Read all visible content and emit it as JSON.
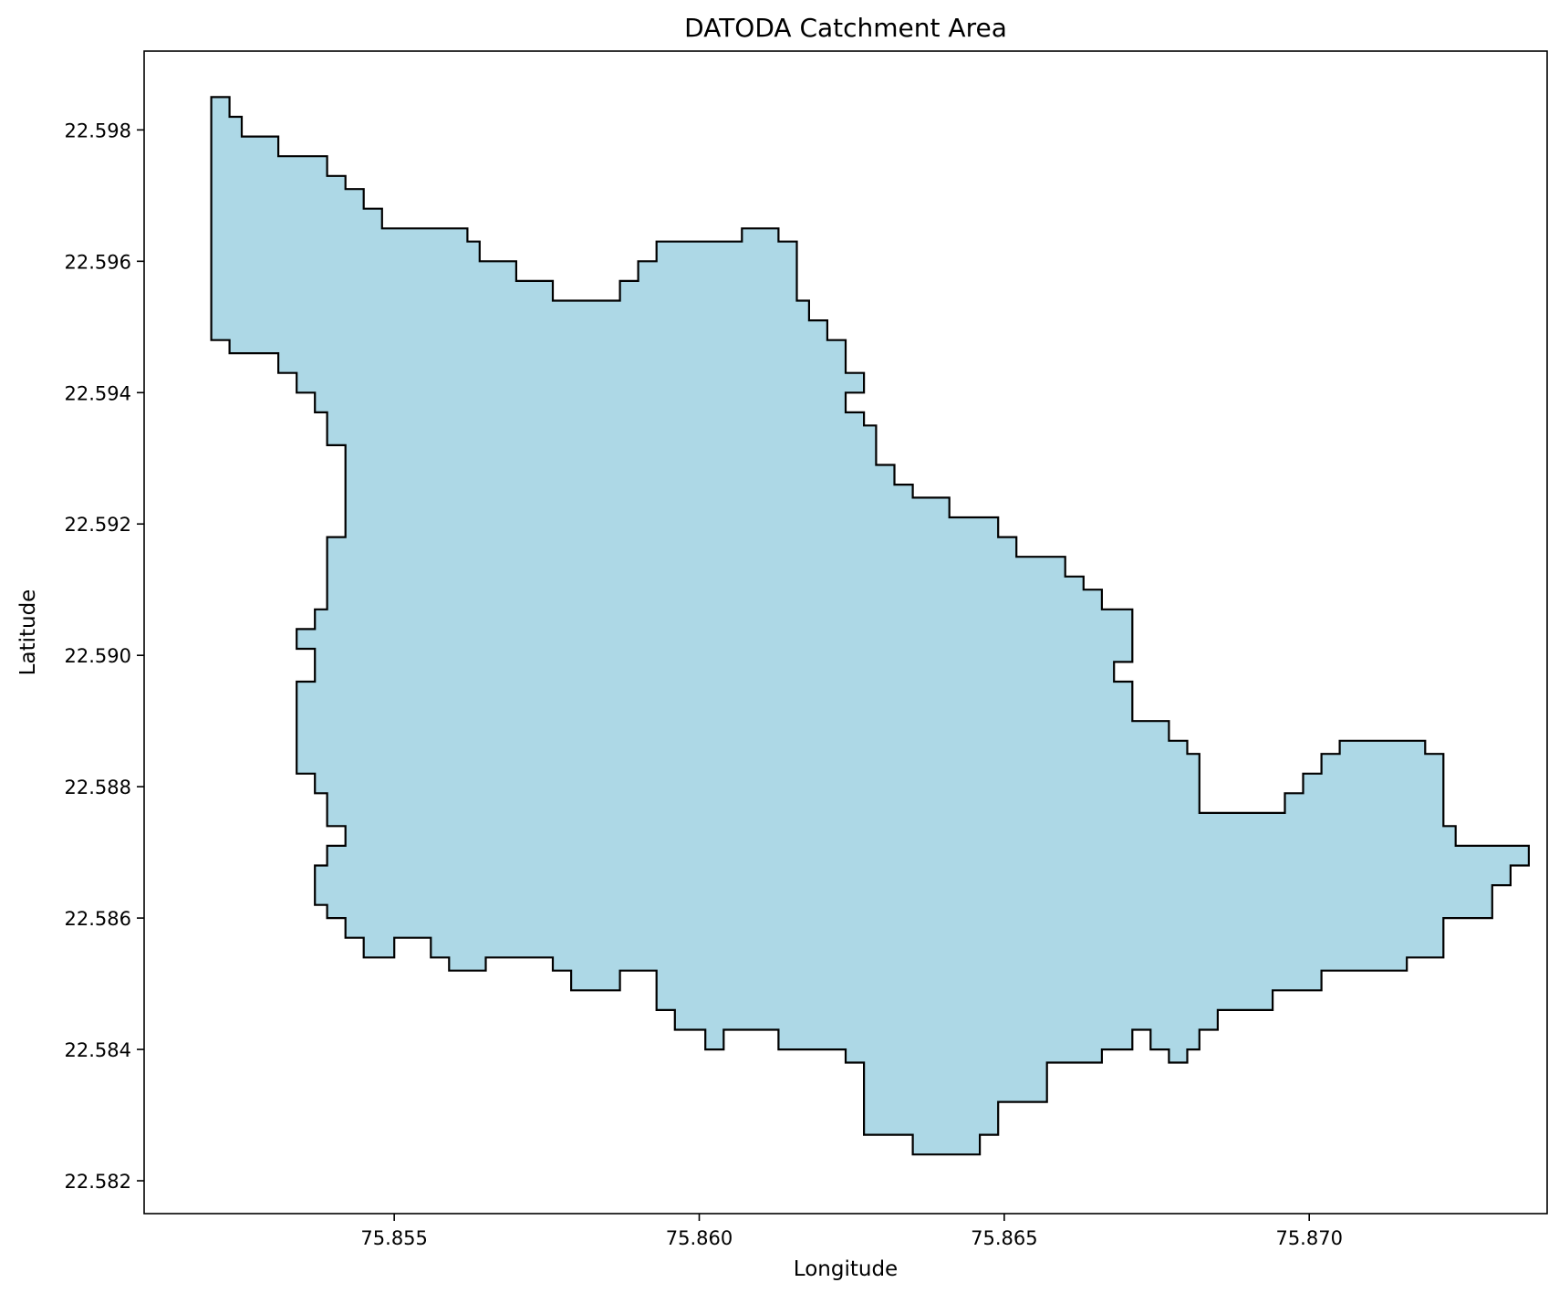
{
  "chart_data": {
    "type": "map",
    "title": "DATODA Catchment Area",
    "xlabel": "Longitude",
    "ylabel": "Latitude",
    "xlim": [
      75.8509,
      75.8739
    ],
    "ylim": [
      22.5815,
      22.5992
    ],
    "grid": false,
    "legend": "none",
    "x_ticks": [
      {
        "value": 75.855,
        "label": "75.855"
      },
      {
        "value": 75.86,
        "label": "75.860"
      },
      {
        "value": 75.865,
        "label": "75.865"
      },
      {
        "value": 75.87,
        "label": "75.870"
      }
    ],
    "y_ticks": [
      {
        "value": 22.582,
        "label": "22.582"
      },
      {
        "value": 22.584,
        "label": "22.584"
      },
      {
        "value": 22.586,
        "label": "22.586"
      },
      {
        "value": 22.588,
        "label": "22.588"
      },
      {
        "value": 22.59,
        "label": "22.590"
      },
      {
        "value": 22.592,
        "label": "22.592"
      },
      {
        "value": 22.594,
        "label": "22.594"
      },
      {
        "value": 22.596,
        "label": "22.596"
      },
      {
        "value": 22.598,
        "label": "22.598"
      }
    ],
    "polygon": {
      "fill_color": "#add8e6",
      "edge_color": "#000000",
      "coordinates": [
        [
          75.852,
          22.5985
        ],
        [
          75.8523,
          22.5985
        ],
        [
          75.8523,
          22.5982
        ],
        [
          75.8525,
          22.5982
        ],
        [
          75.8525,
          22.5979
        ],
        [
          75.8531,
          22.5979
        ],
        [
          75.8531,
          22.5976
        ],
        [
          75.8539,
          22.5976
        ],
        [
          75.8539,
          22.5973
        ],
        [
          75.8542,
          22.5973
        ],
        [
          75.8542,
          22.5971
        ],
        [
          75.8545,
          22.5971
        ],
        [
          75.8545,
          22.5968
        ],
        [
          75.8548,
          22.5968
        ],
        [
          75.8548,
          22.5965
        ],
        [
          75.8562,
          22.5965
        ],
        [
          75.8562,
          22.5963
        ],
        [
          75.8564,
          22.5963
        ],
        [
          75.8564,
          22.596
        ],
        [
          75.857,
          22.596
        ],
        [
          75.857,
          22.5957
        ],
        [
          75.8576,
          22.5957
        ],
        [
          75.8576,
          22.5954
        ],
        [
          75.8587,
          22.5954
        ],
        [
          75.8587,
          22.5957
        ],
        [
          75.859,
          22.5957
        ],
        [
          75.859,
          22.596
        ],
        [
          75.8593,
          22.596
        ],
        [
          75.8593,
          22.5963
        ],
        [
          75.8607,
          22.5963
        ],
        [
          75.8607,
          22.5965
        ],
        [
          75.8613,
          22.5965
        ],
        [
          75.8613,
          22.5963
        ],
        [
          75.8616,
          22.5963
        ],
        [
          75.8616,
          22.5954
        ],
        [
          75.8618,
          22.5954
        ],
        [
          75.8618,
          22.5951
        ],
        [
          75.8621,
          22.5951
        ],
        [
          75.8621,
          22.5948
        ],
        [
          75.8624,
          22.5948
        ],
        [
          75.8624,
          22.5943
        ],
        [
          75.8627,
          22.5943
        ],
        [
          75.8627,
          22.594
        ],
        [
          75.8624,
          22.594
        ],
        [
          75.8624,
          22.5937
        ],
        [
          75.8627,
          22.5937
        ],
        [
          75.8627,
          22.5935
        ],
        [
          75.8629,
          22.5935
        ],
        [
          75.8629,
          22.5929
        ],
        [
          75.8632,
          22.5929
        ],
        [
          75.8632,
          22.5926
        ],
        [
          75.8635,
          22.5926
        ],
        [
          75.8635,
          22.5924
        ],
        [
          75.8641,
          22.5924
        ],
        [
          75.8641,
          22.5921
        ],
        [
          75.8649,
          22.5921
        ],
        [
          75.8649,
          22.5918
        ],
        [
          75.8652,
          22.5918
        ],
        [
          75.8652,
          22.5915
        ],
        [
          75.866,
          22.5915
        ],
        [
          75.866,
          22.5912
        ],
        [
          75.8663,
          22.5912
        ],
        [
          75.8663,
          22.591
        ],
        [
          75.8666,
          22.591
        ],
        [
          75.8666,
          22.5907
        ],
        [
          75.8671,
          22.5907
        ],
        [
          75.8671,
          22.5899
        ],
        [
          75.8668,
          22.5899
        ],
        [
          75.8668,
          22.5896
        ],
        [
          75.8671,
          22.5896
        ],
        [
          75.8671,
          22.589
        ],
        [
          75.8677,
          22.589
        ],
        [
          75.8677,
          22.5887
        ],
        [
          75.868,
          22.5887
        ],
        [
          75.868,
          22.5885
        ],
        [
          75.8682,
          22.5885
        ],
        [
          75.8682,
          22.5876
        ],
        [
          75.8696,
          22.5876
        ],
        [
          75.8696,
          22.5879
        ],
        [
          75.8699,
          22.5879
        ],
        [
          75.8699,
          22.5882
        ],
        [
          75.8702,
          22.5882
        ],
        [
          75.8702,
          22.5885
        ],
        [
          75.8705,
          22.5885
        ],
        [
          75.8705,
          22.5887
        ],
        [
          75.8719,
          22.5887
        ],
        [
          75.8719,
          22.5885
        ],
        [
          75.8722,
          22.5885
        ],
        [
          75.8722,
          22.5874
        ],
        [
          75.8724,
          22.5874
        ],
        [
          75.8724,
          22.5871
        ],
        [
          75.8736,
          22.5871
        ],
        [
          75.8736,
          22.5868
        ],
        [
          75.8733,
          22.5868
        ],
        [
          75.8733,
          22.5865
        ],
        [
          75.873,
          22.5865
        ],
        [
          75.873,
          22.586
        ],
        [
          75.8722,
          22.586
        ],
        [
          75.8722,
          22.5854
        ],
        [
          75.8716,
          22.5854
        ],
        [
          75.8716,
          22.5852
        ],
        [
          75.8702,
          22.5852
        ],
        [
          75.8702,
          22.5849
        ],
        [
          75.8694,
          22.5849
        ],
        [
          75.8694,
          22.5846
        ],
        [
          75.8685,
          22.5846
        ],
        [
          75.8685,
          22.5843
        ],
        [
          75.8682,
          22.5843
        ],
        [
          75.8682,
          22.584
        ],
        [
          75.868,
          22.584
        ],
        [
          75.868,
          22.5838
        ],
        [
          75.8677,
          22.5838
        ],
        [
          75.8677,
          22.584
        ],
        [
          75.8674,
          22.584
        ],
        [
          75.8674,
          22.5843
        ],
        [
          75.8671,
          22.5843
        ],
        [
          75.8671,
          22.584
        ],
        [
          75.8666,
          22.584
        ],
        [
          75.8666,
          22.5838
        ],
        [
          75.8657,
          22.5838
        ],
        [
          75.8657,
          22.5832
        ],
        [
          75.8649,
          22.5832
        ],
        [
          75.8649,
          22.5827
        ],
        [
          75.8646,
          22.5827
        ],
        [
          75.8646,
          22.5824
        ],
        [
          75.8635,
          22.5824
        ],
        [
          75.8635,
          22.5827
        ],
        [
          75.8627,
          22.5827
        ],
        [
          75.8627,
          22.5838
        ],
        [
          75.8624,
          22.5838
        ],
        [
          75.8624,
          22.584
        ],
        [
          75.8613,
          22.584
        ],
        [
          75.8613,
          22.5843
        ],
        [
          75.8604,
          22.5843
        ],
        [
          75.8604,
          22.584
        ],
        [
          75.8601,
          22.584
        ],
        [
          75.8601,
          22.5843
        ],
        [
          75.8596,
          22.5843
        ],
        [
          75.8596,
          22.5846
        ],
        [
          75.8593,
          22.5846
        ],
        [
          75.8593,
          22.5852
        ],
        [
          75.8587,
          22.5852
        ],
        [
          75.8587,
          22.5849
        ],
        [
          75.8579,
          22.5849
        ],
        [
          75.8579,
          22.5852
        ],
        [
          75.8576,
          22.5852
        ],
        [
          75.8576,
          22.5854
        ],
        [
          75.8565,
          22.5854
        ],
        [
          75.8565,
          22.5852
        ],
        [
          75.8559,
          22.5852
        ],
        [
          75.8559,
          22.5854
        ],
        [
          75.8556,
          22.5854
        ],
        [
          75.8556,
          22.5857
        ],
        [
          75.855,
          22.5857
        ],
        [
          75.855,
          22.5854
        ],
        [
          75.8545,
          22.5854
        ],
        [
          75.8545,
          22.5857
        ],
        [
          75.8542,
          22.5857
        ],
        [
          75.8542,
          22.586
        ],
        [
          75.8539,
          22.586
        ],
        [
          75.8539,
          22.5862
        ],
        [
          75.8537,
          22.5862
        ],
        [
          75.8537,
          22.5868
        ],
        [
          75.8539,
          22.5868
        ],
        [
          75.8539,
          22.5871
        ],
        [
          75.8542,
          22.5871
        ],
        [
          75.8542,
          22.5874
        ],
        [
          75.8539,
          22.5874
        ],
        [
          75.8539,
          22.5879
        ],
        [
          75.8537,
          22.5879
        ],
        [
          75.8537,
          22.5882
        ],
        [
          75.8534,
          22.5882
        ],
        [
          75.8534,
          22.5896
        ],
        [
          75.8537,
          22.5896
        ],
        [
          75.8537,
          22.5901
        ],
        [
          75.8534,
          22.5901
        ],
        [
          75.8534,
          22.5904
        ],
        [
          75.8537,
          22.5904
        ],
        [
          75.8537,
          22.5907
        ],
        [
          75.8539,
          22.5907
        ],
        [
          75.8539,
          22.5918
        ],
        [
          75.8542,
          22.5918
        ],
        [
          75.8542,
          22.5932
        ],
        [
          75.8539,
          22.5932
        ],
        [
          75.8539,
          22.5937
        ],
        [
          75.8537,
          22.5937
        ],
        [
          75.8537,
          22.594
        ],
        [
          75.8534,
          22.594
        ],
        [
          75.8534,
          22.5943
        ],
        [
          75.8531,
          22.5943
        ],
        [
          75.8531,
          22.5946
        ],
        [
          75.8523,
          22.5946
        ],
        [
          75.8523,
          22.5948
        ],
        [
          75.852,
          22.5948
        ],
        [
          75.852,
          22.5985
        ]
      ]
    }
  }
}
